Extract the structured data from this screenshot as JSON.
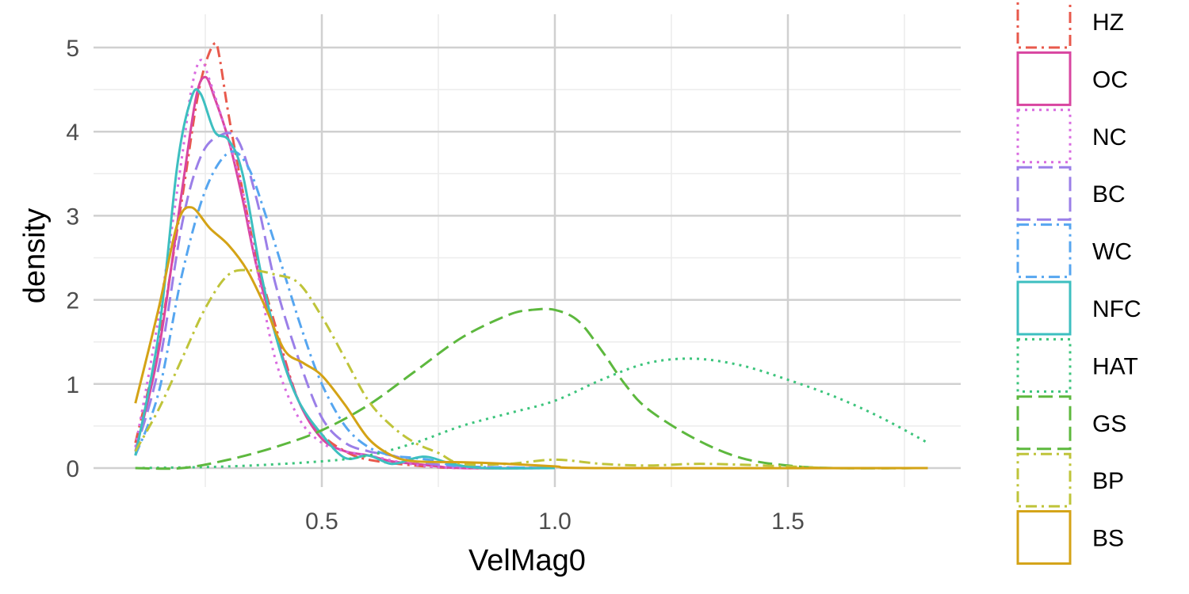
{
  "chart_data": {
    "type": "line",
    "subtype": "density",
    "title": "",
    "xlabel": "VelMag0",
    "ylabel": "density",
    "xlim": [
      0.0,
      1.85
    ],
    "ylim": [
      -0.5,
      5.5
    ],
    "x_ticks": [
      0.5,
      1.0,
      1.5
    ],
    "x_tick_labels": [
      "0.5",
      "1.0",
      "1.5"
    ],
    "y_ticks": [
      0,
      1,
      2,
      3,
      4,
      5
    ],
    "y_tick_labels": [
      "0",
      "1",
      "2",
      "3",
      "4",
      "5"
    ],
    "grid": true,
    "legend_position": "right",
    "series": [
      {
        "name": "HZ",
        "color": "#E8594C",
        "dash": "dashdot",
        "points": [
          [
            0.1,
            0.3
          ],
          [
            0.15,
            1.5
          ],
          [
            0.2,
            3.2
          ],
          [
            0.23,
            4.3
          ],
          [
            0.25,
            4.8
          ],
          [
            0.27,
            5.05
          ],
          [
            0.28,
            4.9
          ],
          [
            0.3,
            4.2
          ],
          [
            0.33,
            3.3
          ],
          [
            0.36,
            2.5
          ],
          [
            0.4,
            1.7
          ],
          [
            0.45,
            0.8
          ],
          [
            0.5,
            0.4
          ],
          [
            0.55,
            0.2
          ],
          [
            0.6,
            0.1
          ],
          [
            0.7,
            0.03
          ],
          [
            0.8,
            0.0
          ],
          [
            1.0,
            0.0
          ]
        ]
      },
      {
        "name": "OC",
        "color": "#D946A0",
        "dash": "solid",
        "points": [
          [
            0.1,
            0.2
          ],
          [
            0.15,
            1.4
          ],
          [
            0.2,
            3.3
          ],
          [
            0.23,
            4.4
          ],
          [
            0.25,
            4.65
          ],
          [
            0.27,
            4.4
          ],
          [
            0.3,
            3.9
          ],
          [
            0.33,
            3.2
          ],
          [
            0.36,
            2.4
          ],
          [
            0.4,
            1.6
          ],
          [
            0.45,
            0.8
          ],
          [
            0.5,
            0.35
          ],
          [
            0.55,
            0.2
          ],
          [
            0.6,
            0.15
          ],
          [
            0.65,
            0.08
          ],
          [
            0.7,
            0.05
          ],
          [
            0.75,
            0.02
          ],
          [
            0.8,
            0.0
          ],
          [
            1.0,
            0.0
          ]
        ]
      },
      {
        "name": "NC",
        "color": "#D96BE0",
        "dash": "dotted",
        "points": [
          [
            0.1,
            0.25
          ],
          [
            0.15,
            1.8
          ],
          [
            0.2,
            3.7
          ],
          [
            0.22,
            4.5
          ],
          [
            0.24,
            4.85
          ],
          [
            0.26,
            4.6
          ],
          [
            0.3,
            3.9
          ],
          [
            0.33,
            3.3
          ],
          [
            0.36,
            2.4
          ],
          [
            0.4,
            1.3
          ],
          [
            0.45,
            0.6
          ],
          [
            0.5,
            0.3
          ],
          [
            0.55,
            0.2
          ],
          [
            0.6,
            0.15
          ],
          [
            0.7,
            0.04
          ],
          [
            0.8,
            0.0
          ],
          [
            1.0,
            0.0
          ]
        ]
      },
      {
        "name": "BC",
        "color": "#9B7FE8",
        "dash": "longdash",
        "points": [
          [
            0.1,
            0.2
          ],
          [
            0.15,
            1.2
          ],
          [
            0.2,
            2.9
          ],
          [
            0.24,
            3.7
          ],
          [
            0.28,
            3.95
          ],
          [
            0.32,
            3.9
          ],
          [
            0.36,
            3.2
          ],
          [
            0.4,
            2.2
          ],
          [
            0.45,
            1.3
          ],
          [
            0.5,
            0.6
          ],
          [
            0.55,
            0.3
          ],
          [
            0.6,
            0.2
          ],
          [
            0.65,
            0.15
          ],
          [
            0.7,
            0.08
          ],
          [
            0.8,
            0.02
          ],
          [
            1.0,
            0.0
          ]
        ]
      },
      {
        "name": "WC",
        "color": "#56A6F0",
        "dash": "dashdot",
        "points": [
          [
            0.1,
            0.15
          ],
          [
            0.15,
            0.9
          ],
          [
            0.2,
            2.3
          ],
          [
            0.25,
            3.3
          ],
          [
            0.3,
            3.75
          ],
          [
            0.34,
            3.6
          ],
          [
            0.38,
            3.0
          ],
          [
            0.42,
            2.3
          ],
          [
            0.46,
            1.6
          ],
          [
            0.5,
            1.0
          ],
          [
            0.55,
            0.5
          ],
          [
            0.6,
            0.25
          ],
          [
            0.65,
            0.15
          ],
          [
            0.7,
            0.12
          ],
          [
            0.75,
            0.08
          ],
          [
            0.8,
            0.02
          ],
          [
            1.0,
            0.0
          ]
        ]
      },
      {
        "name": "NFC",
        "color": "#3DBFC0",
        "dash": "solid",
        "points": [
          [
            0.1,
            0.15
          ],
          [
            0.15,
            1.6
          ],
          [
            0.19,
            3.6
          ],
          [
            0.22,
            4.4
          ],
          [
            0.24,
            4.45
          ],
          [
            0.27,
            4.0
          ],
          [
            0.3,
            3.9
          ],
          [
            0.33,
            3.5
          ],
          [
            0.37,
            2.3
          ],
          [
            0.41,
            1.4
          ],
          [
            0.45,
            0.8
          ],
          [
            0.5,
            0.4
          ],
          [
            0.55,
            0.12
          ],
          [
            0.6,
            0.15
          ],
          [
            0.65,
            0.05
          ],
          [
            0.7,
            0.12
          ],
          [
            0.73,
            0.13
          ],
          [
            0.78,
            0.05
          ],
          [
            0.85,
            0.0
          ],
          [
            1.0,
            0.0
          ]
        ]
      },
      {
        "name": "HAT",
        "color": "#3CC47C",
        "dash": "dotted",
        "points": [
          [
            0.1,
            0.0
          ],
          [
            0.3,
            0.02
          ],
          [
            0.5,
            0.08
          ],
          [
            0.6,
            0.15
          ],
          [
            0.7,
            0.3
          ],
          [
            0.8,
            0.5
          ],
          [
            0.9,
            0.65
          ],
          [
            1.0,
            0.8
          ],
          [
            1.1,
            1.05
          ],
          [
            1.2,
            1.25
          ],
          [
            1.3,
            1.3
          ],
          [
            1.4,
            1.22
          ],
          [
            1.5,
            1.05
          ],
          [
            1.6,
            0.85
          ],
          [
            1.7,
            0.6
          ],
          [
            1.8,
            0.3
          ]
        ]
      },
      {
        "name": "GS",
        "color": "#5DB83E",
        "dash": "longdash",
        "points": [
          [
            0.1,
            0.0
          ],
          [
            0.2,
            0.0
          ],
          [
            0.3,
            0.1
          ],
          [
            0.4,
            0.25
          ],
          [
            0.5,
            0.45
          ],
          [
            0.6,
            0.75
          ],
          [
            0.7,
            1.15
          ],
          [
            0.8,
            1.55
          ],
          [
            0.9,
            1.82
          ],
          [
            0.95,
            1.88
          ],
          [
            1.0,
            1.88
          ],
          [
            1.05,
            1.75
          ],
          [
            1.1,
            1.4
          ],
          [
            1.15,
            1.0
          ],
          [
            1.2,
            0.7
          ],
          [
            1.3,
            0.35
          ],
          [
            1.4,
            0.12
          ],
          [
            1.5,
            0.03
          ],
          [
            1.6,
            0.0
          ],
          [
            1.8,
            0.0
          ]
        ]
      },
      {
        "name": "BP",
        "color": "#BFC43A",
        "dash": "dashdot",
        "points": [
          [
            0.1,
            0.2
          ],
          [
            0.15,
            0.7
          ],
          [
            0.2,
            1.3
          ],
          [
            0.25,
            1.9
          ],
          [
            0.3,
            2.3
          ],
          [
            0.35,
            2.35
          ],
          [
            0.4,
            2.3
          ],
          [
            0.45,
            2.2
          ],
          [
            0.5,
            1.8
          ],
          [
            0.55,
            1.3
          ],
          [
            0.6,
            0.8
          ],
          [
            0.65,
            0.5
          ],
          [
            0.7,
            0.3
          ],
          [
            0.75,
            0.18
          ],
          [
            0.8,
            0.05
          ],
          [
            0.9,
            0.05
          ],
          [
            1.0,
            0.1
          ],
          [
            1.1,
            0.05
          ],
          [
            1.2,
            0.03
          ],
          [
            1.3,
            0.05
          ],
          [
            1.4,
            0.04
          ],
          [
            1.5,
            0.02
          ],
          [
            1.6,
            0.0
          ],
          [
            1.8,
            0.0
          ]
        ]
      },
      {
        "name": "BS",
        "color": "#D4A316",
        "dash": "solid",
        "points": [
          [
            0.1,
            0.77
          ],
          [
            0.15,
            1.9
          ],
          [
            0.19,
            2.9
          ],
          [
            0.22,
            3.1
          ],
          [
            0.26,
            2.85
          ],
          [
            0.3,
            2.65
          ],
          [
            0.34,
            2.35
          ],
          [
            0.38,
            1.9
          ],
          [
            0.42,
            1.4
          ],
          [
            0.46,
            1.25
          ],
          [
            0.5,
            1.1
          ],
          [
            0.55,
            0.75
          ],
          [
            0.6,
            0.35
          ],
          [
            0.65,
            0.15
          ],
          [
            0.7,
            0.08
          ],
          [
            0.8,
            0.07
          ],
          [
            0.9,
            0.05
          ],
          [
            1.0,
            0.02
          ],
          [
            1.1,
            0.0
          ],
          [
            1.8,
            0.0
          ]
        ]
      }
    ]
  }
}
